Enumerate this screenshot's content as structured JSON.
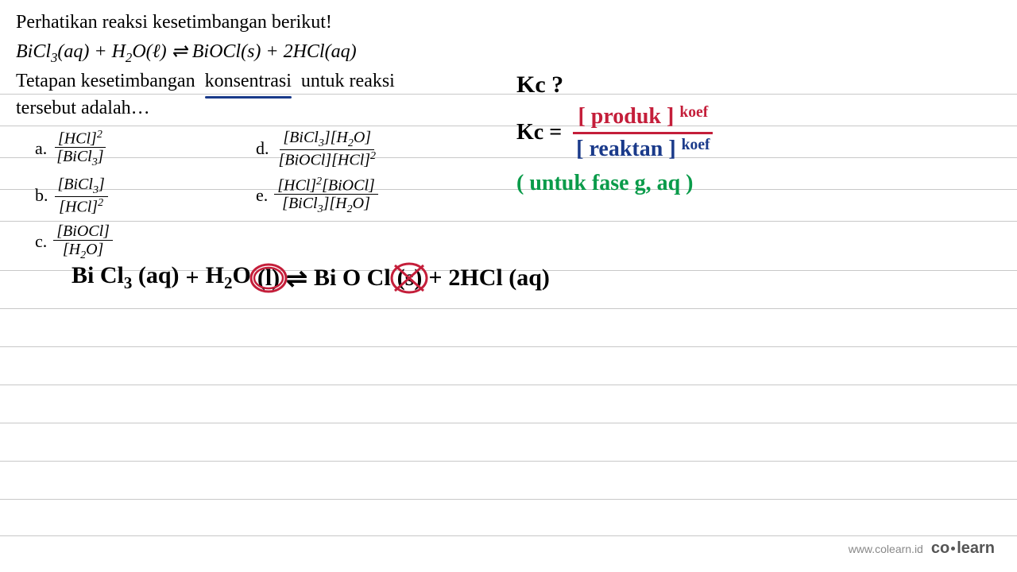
{
  "problem": {
    "intro": "Perhatikan reaksi kesetimbangan berikut!",
    "equation_html": "BiCl<span class='sub'>3</span>(aq) + H<span class='sub'>2</span>O(ℓ) ⇌ BiOCl(s) + 2HCl(aq)",
    "question_pre": "Tetapan  kesetimbangan",
    "question_underlined": "konsentrasi",
    "question_post": "untuk  reaksi",
    "question_line2": "tersebut adalah…"
  },
  "options": {
    "a": {
      "num": "[HCl]<span class='sup'>2</span>",
      "den": "[BiCl<span class='sub'>3</span>]"
    },
    "b": {
      "num": "[BiCl<span class='sub'>3</span>]",
      "den": "[HCl]<span class='sup'>2</span>"
    },
    "c": {
      "num": "[BiOCl]",
      "den": "[H<span class='sub'>2</span>O]"
    },
    "d": {
      "num": "[BiCl<span class='sub'>3</span>][H<span class='sub'>2</span>O]",
      "den": "[BiOCl][HCl]<span class='sup'>2</span>"
    },
    "e": {
      "num": "[HCl]<span class='sup'>2</span>[BiOCl]",
      "den": "[BiCl<span class='sub'>3</span>][H<span class='sub'>2</span>O]"
    }
  },
  "annotations": {
    "kc_question": "Kc ?",
    "kc_label": "Kc  =",
    "kc_numerator": "[ produk ] <span style='font-size:0.7em;position:relative;top:-8px'>koef</span>",
    "kc_denominator": "[ reaktan ] <span style='font-size:0.7em;position:relative;top:-8px'>koef</span>",
    "phase_note": "( untuk  fase   g, aq )",
    "rewrite": {
      "r1": "Bi Cl<span class='sub'>3</span> (aq)",
      "plus1": "+",
      "r2_pre": "H<span class='sub'>2</span>O",
      "r2_phase": "(l)",
      "equil": "⇌",
      "p1_pre": "Bi O Cl",
      "p1_phase": "(s)",
      "plus2": "+",
      "p2": "2HCl (aq)"
    }
  },
  "ruled_lines": {
    "positions": [
      118,
      158,
      198,
      238,
      278,
      340,
      388,
      436,
      484,
      532,
      580,
      628,
      674
    ],
    "color": "#c8c8c8"
  },
  "colors": {
    "underline": "#1a3a8a",
    "red": "#c41e3a",
    "blue": "#1a3a8a",
    "green": "#0a9b4a",
    "black": "#000000"
  },
  "footer": {
    "url": "www.colearn.id",
    "logo_a": "co",
    "logo_b": "learn"
  }
}
